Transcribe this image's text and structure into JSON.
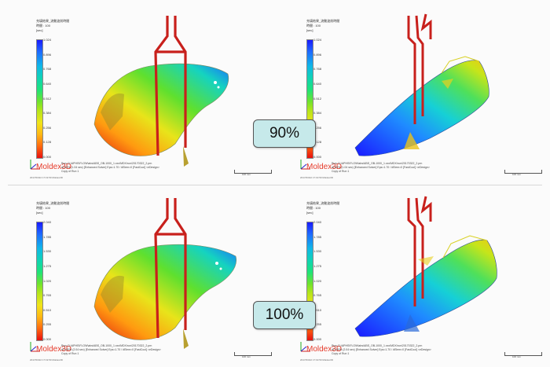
{
  "header": {
    "title_line": "充填結果_流動波前時間",
    "unit_line": "時間 : 100",
    "unit": "[sec]"
  },
  "panels": [
    {
      "id": "tl",
      "ticks": [
        "1.024",
        "0.896",
        "0.768",
        "0.640",
        "0.512",
        "0.384",
        "0.256",
        "0.128",
        "0.000"
      ]
    },
    {
      "id": "tr",
      "ticks": [
        "1.024",
        "0.896",
        "0.768",
        "0.640",
        "0.512",
        "0.384",
        "0.256",
        "0.128",
        "0.000"
      ]
    },
    {
      "id": "bl",
      "ticks": [
        "2.040",
        "1.785",
        "1.530",
        "1.275",
        "1.020",
        "0.765",
        "0.510",
        "0.255",
        "0.000"
      ]
    },
    {
      "id": "br",
      "ticks": [
        "2.040",
        "1.785",
        "1.530",
        "1.275",
        "1.020",
        "0.765",
        "0.510",
        "0.255",
        "0.000"
      ]
    }
  ],
  "brand": {
    "name": "Moldex",
    "suffix": "3D"
  },
  "info": {
    "line1": "Run: D:\\APHS\\FLOW\\abs\\ABS_OB-1000_1.xxx\\MDX\\run\\20170322_2.prn",
    "line2": "At 90% (1.04 sec) [Enhanced Solver] Eps=1.70 / #Elem=0 [FastCool] <eDesign>",
    "line3": "Copy of Run 1"
  },
  "info_bottom": {
    "line1": "Run: D:\\APHS\\FLOW\\abs\\ABS_OB-1000_1.xxx\\MDX\\run\\20170322_2.prn",
    "line2": "At 100% (2.04 sec) [Enhanced Solver] Eps=1.70 / #Elem=0 [FastCool] <eDesign>",
    "line3": "Copy of Run 1"
  },
  "stamp": "2017/03/22 17:19:50  Moldex3D",
  "scalebar_label": "100 mm",
  "badges": {
    "top": "90%",
    "bottom": "100%"
  },
  "colors": {
    "runner": "#c8201c",
    "badge_bg": "#c6e9ea",
    "brand": "#e53a2a"
  }
}
